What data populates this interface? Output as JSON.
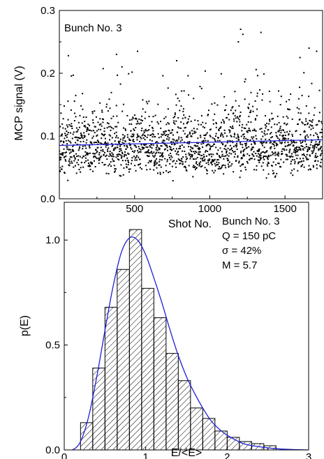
{
  "chart_data": [
    {
      "type": "scatter",
      "title": "",
      "annotation": "Bunch No. 3",
      "xlabel": "Shot No.",
      "ylabel": "MCP signal (V)",
      "xlim": [
        0,
        1750
      ],
      "ylim": [
        0.0,
        0.3
      ],
      "x_ticks": [
        500,
        1000,
        1500
      ],
      "y_ticks": [
        0.0,
        0.1,
        0.2,
        0.3
      ],
      "y_tick_labels": [
        "0.0",
        "0.1",
        "0.2",
        "0.3"
      ],
      "point_color": "#000000",
      "n_points": 1750,
      "point_distribution": {
        "median": 0.085,
        "typical_range": [
          0.03,
          0.17
        ],
        "max": 0.27,
        "min": 0.015
      },
      "outliers": [
        {
          "x": 1205,
          "y": 0.27
        },
        {
          "x": 1340,
          "y": 0.265
        },
        {
          "x": 1220,
          "y": 0.262
        },
        {
          "x": 1190,
          "y": 0.25
        },
        {
          "x": 1660,
          "y": 0.24
        },
        {
          "x": 1710,
          "y": 0.235
        },
        {
          "x": 380,
          "y": 0.23
        },
        {
          "x": 60,
          "y": 0.228
        },
        {
          "x": 520,
          "y": 0.235
        },
        {
          "x": 780,
          "y": 0.22
        },
        {
          "x": 1600,
          "y": 0.225
        }
      ],
      "trend_line": {
        "color": "#1f1fd6",
        "x": [
          0,
          1750
        ],
        "y": [
          0.085,
          0.094
        ]
      },
      "grid": false
    },
    {
      "type": "bar",
      "subtype": "histogram",
      "title": "",
      "xlabel": "E/<E>",
      "ylabel": "p(E)",
      "xlim": [
        0,
        3
      ],
      "ylim": [
        0,
        1.18
      ],
      "x_ticks": [
        0,
        1,
        2,
        3
      ],
      "y_ticks": [
        0.0,
        0.5,
        1.0
      ],
      "y_tick_labels": [
        "0.0",
        "0.5",
        "1.0"
      ],
      "bin_width": 0.15,
      "bin_left_edges": [
        0.2,
        0.35,
        0.5,
        0.65,
        0.8,
        0.95,
        1.1,
        1.25,
        1.4,
        1.55,
        1.7,
        1.85,
        2.0,
        2.15,
        2.3,
        2.45
      ],
      "values": [
        0.13,
        0.39,
        0.68,
        0.86,
        1.05,
        0.77,
        0.63,
        0.46,
        0.33,
        0.2,
        0.15,
        0.09,
        0.06,
        0.04,
        0.03,
        0.02
      ],
      "fill": "diagonal hatch",
      "fit_curve": {
        "color": "#1f1fd6",
        "x": [
          0.0,
          0.1,
          0.2,
          0.3,
          0.4,
          0.5,
          0.6,
          0.7,
          0.8,
          0.9,
          1.0,
          1.1,
          1.2,
          1.3,
          1.4,
          1.5,
          1.6,
          1.7,
          1.8,
          1.9,
          2.0,
          2.2,
          2.4,
          2.6,
          2.8,
          3.0
        ],
        "y": [
          0.0,
          0.0,
          0.04,
          0.16,
          0.35,
          0.57,
          0.78,
          0.94,
          1.01,
          1.0,
          0.93,
          0.82,
          0.7,
          0.57,
          0.45,
          0.35,
          0.27,
          0.2,
          0.14,
          0.1,
          0.07,
          0.03,
          0.015,
          0.006,
          0.002,
          0.0
        ]
      },
      "annotations": [
        "Bunch No. 3",
        "Q = 150 pC",
        "σ = 42%",
        "M = 5.7"
      ],
      "grid": false
    }
  ]
}
